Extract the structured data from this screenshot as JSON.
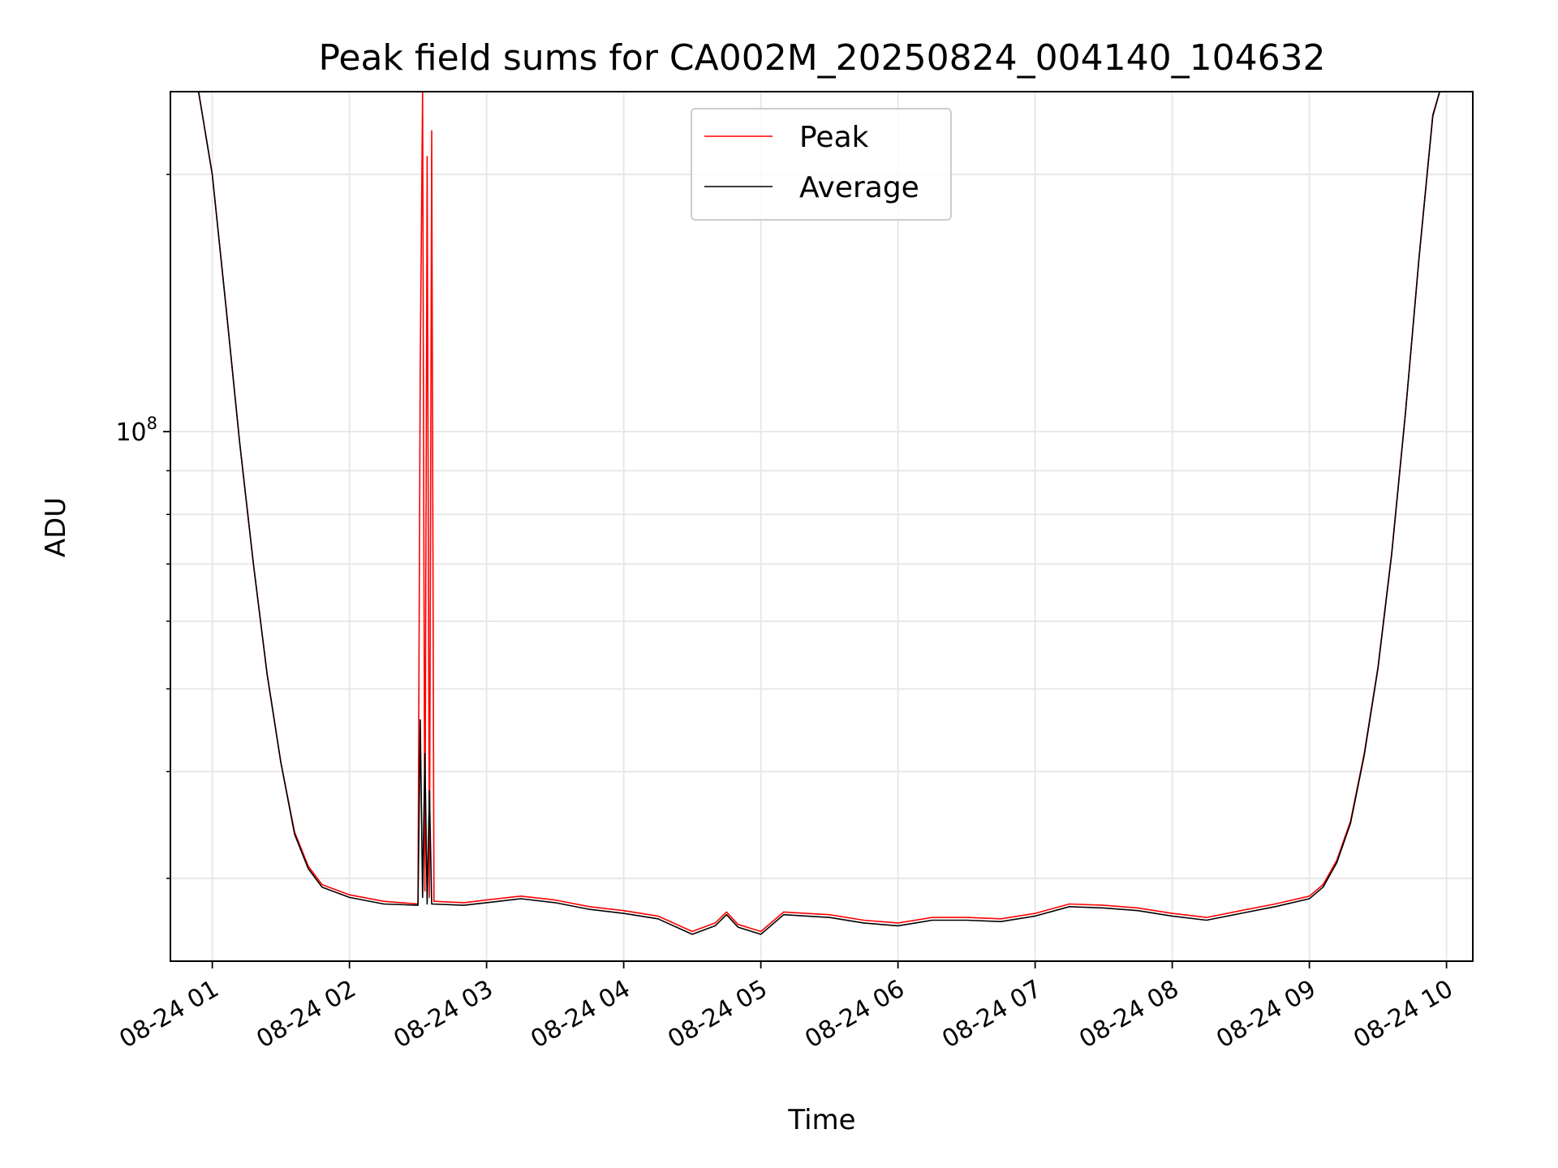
{
  "chart_data": {
    "type": "line",
    "title": "Peak field sums for CA002M_20250824_004140_104632",
    "xlabel": "Time",
    "ylabel": "ADU",
    "y_scale": "log",
    "ylim": [
      24000000,
      250000000
    ],
    "xlim": [
      "2025-08-24 00:41:40",
      "2025-08-24 10:11:30"
    ],
    "grid": true,
    "legend_position": "top-center",
    "x_ticks": [
      {
        "t": "2025-08-24 01:00",
        "label": "08-24 01"
      },
      {
        "t": "2025-08-24 02:00",
        "label": "08-24 02"
      },
      {
        "t": "2025-08-24 03:00",
        "label": "08-24 03"
      },
      {
        "t": "2025-08-24 04:00",
        "label": "08-24 04"
      },
      {
        "t": "2025-08-24 05:00",
        "label": "08-24 05"
      },
      {
        "t": "2025-08-24 06:00",
        "label": "08-24 06"
      },
      {
        "t": "2025-08-24 07:00",
        "label": "08-24 07"
      },
      {
        "t": "2025-08-24 08:00",
        "label": "08-24 08"
      },
      {
        "t": "2025-08-24 09:00",
        "label": "08-24 09"
      },
      {
        "t": "2025-08-24 10:00",
        "label": "08-24 10"
      }
    ],
    "y_major_ticks": [
      {
        "value": 100000000,
        "label_base": "10",
        "label_exp": "8"
      }
    ],
    "y_minor_ticks": [
      30000000,
      40000000,
      50000000,
      60000000,
      70000000,
      80000000,
      90000000,
      200000000
    ],
    "series": [
      {
        "name": "Peak",
        "color": "#ff0000",
        "points": [
          [
            "2025-08-24 00:41:40",
            250000000
          ],
          [
            "2025-08-24 00:54:00",
            250000000
          ],
          [
            "2025-08-24 01:00:00",
            200000000
          ],
          [
            "2025-08-24 01:06:00",
            140000000
          ],
          [
            "2025-08-24 01:12:00",
            97000000
          ],
          [
            "2025-08-24 01:18:00",
            70000000
          ],
          [
            "2025-08-24 01:24:00",
            52000000
          ],
          [
            "2025-08-24 01:30:00",
            41000000
          ],
          [
            "2025-08-24 01:36:00",
            34000000
          ],
          [
            "2025-08-24 01:42:00",
            31000000
          ],
          [
            "2025-08-24 01:48:00",
            29500000
          ],
          [
            "2025-08-24 02:00:00",
            28700000
          ],
          [
            "2025-08-24 02:15:00",
            28200000
          ],
          [
            "2025-08-24 02:30:00",
            28000000
          ],
          [
            "2025-08-24 02:31:00",
            120000000
          ],
          [
            "2025-08-24 02:32:00",
            250000000
          ],
          [
            "2025-08-24 02:33:00",
            29000000
          ],
          [
            "2025-08-24 02:34:00",
            210000000
          ],
          [
            "2025-08-24 02:35:00",
            28500000
          ],
          [
            "2025-08-24 02:36:00",
            225000000
          ],
          [
            "2025-08-24 02:37:00",
            28200000
          ],
          [
            "2025-08-24 02:50:00",
            28100000
          ],
          [
            "2025-08-24 03:00:00",
            28300000
          ],
          [
            "2025-08-24 03:15:00",
            28600000
          ],
          [
            "2025-08-24 03:30:00",
            28300000
          ],
          [
            "2025-08-24 03:45:00",
            27800000
          ],
          [
            "2025-08-24 04:00:00",
            27500000
          ],
          [
            "2025-08-24 04:15:00",
            27100000
          ],
          [
            "2025-08-24 04:30:00",
            26000000
          ],
          [
            "2025-08-24 04:40:00",
            26600000
          ],
          [
            "2025-08-24 04:45:00",
            27400000
          ],
          [
            "2025-08-24 04:50:00",
            26500000
          ],
          [
            "2025-08-24 05:00:00",
            26000000
          ],
          [
            "2025-08-24 05:10:00",
            27400000
          ],
          [
            "2025-08-24 05:30:00",
            27200000
          ],
          [
            "2025-08-24 05:45:00",
            26800000
          ],
          [
            "2025-08-24 06:00:00",
            26600000
          ],
          [
            "2025-08-24 06:15:00",
            27000000
          ],
          [
            "2025-08-24 06:30:00",
            27000000
          ],
          [
            "2025-08-24 06:45:00",
            26900000
          ],
          [
            "2025-08-24 07:00:00",
            27300000
          ],
          [
            "2025-08-24 07:15:00",
            28000000
          ],
          [
            "2025-08-24 07:30:00",
            27900000
          ],
          [
            "2025-08-24 07:45:00",
            27700000
          ],
          [
            "2025-08-24 08:00:00",
            27300000
          ],
          [
            "2025-08-24 08:15:00",
            27000000
          ],
          [
            "2025-08-24 08:30:00",
            27500000
          ],
          [
            "2025-08-24 08:45:00",
            28000000
          ],
          [
            "2025-08-24 09:00:00",
            28600000
          ],
          [
            "2025-08-24 09:06:00",
            29500000
          ],
          [
            "2025-08-24 09:12:00",
            31500000
          ],
          [
            "2025-08-24 09:18:00",
            35000000
          ],
          [
            "2025-08-24 09:24:00",
            42000000
          ],
          [
            "2025-08-24 09:30:00",
            53000000
          ],
          [
            "2025-08-24 09:36:00",
            72000000
          ],
          [
            "2025-08-24 09:42:00",
            105000000
          ],
          [
            "2025-08-24 09:48:00",
            160000000
          ],
          [
            "2025-08-24 09:54:00",
            235000000
          ],
          [
            "2025-08-24 09:57:00",
            250000000
          ],
          [
            "2025-08-24 10:11:30",
            250000000
          ]
        ]
      },
      {
        "name": "Average",
        "color": "#000000",
        "points": [
          [
            "2025-08-24 00:41:40",
            250000000
          ],
          [
            "2025-08-24 00:54:00",
            250000000
          ],
          [
            "2025-08-24 01:00:00",
            200000000
          ],
          [
            "2025-08-24 01:06:00",
            140000000
          ],
          [
            "2025-08-24 01:12:00",
            97000000
          ],
          [
            "2025-08-24 01:18:00",
            70000000
          ],
          [
            "2025-08-24 01:24:00",
            52000000
          ],
          [
            "2025-08-24 01:30:00",
            41000000
          ],
          [
            "2025-08-24 01:36:00",
            33800000
          ],
          [
            "2025-08-24 01:42:00",
            30800000
          ],
          [
            "2025-08-24 01:48:00",
            29300000
          ],
          [
            "2025-08-24 02:00:00",
            28500000
          ],
          [
            "2025-08-24 02:15:00",
            28000000
          ],
          [
            "2025-08-24 02:30:00",
            27900000
          ],
          [
            "2025-08-24 02:31:00",
            46000000
          ],
          [
            "2025-08-24 02:32:00",
            28500000
          ],
          [
            "2025-08-24 02:33:00",
            42000000
          ],
          [
            "2025-08-24 02:34:00",
            28000000
          ],
          [
            "2025-08-24 02:35:00",
            38000000
          ],
          [
            "2025-08-24 02:36:00",
            28000000
          ],
          [
            "2025-08-24 02:50:00",
            27900000
          ],
          [
            "2025-08-24 03:00:00",
            28100000
          ],
          [
            "2025-08-24 03:15:00",
            28400000
          ],
          [
            "2025-08-24 03:30:00",
            28100000
          ],
          [
            "2025-08-24 03:45:00",
            27600000
          ],
          [
            "2025-08-24 04:00:00",
            27300000
          ],
          [
            "2025-08-24 04:15:00",
            26900000
          ],
          [
            "2025-08-24 04:30:00",
            25800000
          ],
          [
            "2025-08-24 04:40:00",
            26400000
          ],
          [
            "2025-08-24 04:45:00",
            27200000
          ],
          [
            "2025-08-24 04:50:00",
            26300000
          ],
          [
            "2025-08-24 05:00:00",
            25800000
          ],
          [
            "2025-08-24 05:10:00",
            27200000
          ],
          [
            "2025-08-24 05:30:00",
            27000000
          ],
          [
            "2025-08-24 05:45:00",
            26600000
          ],
          [
            "2025-08-24 06:00:00",
            26400000
          ],
          [
            "2025-08-24 06:15:00",
            26800000
          ],
          [
            "2025-08-24 06:30:00",
            26800000
          ],
          [
            "2025-08-24 06:45:00",
            26700000
          ],
          [
            "2025-08-24 07:00:00",
            27100000
          ],
          [
            "2025-08-24 07:15:00",
            27800000
          ],
          [
            "2025-08-24 07:30:00",
            27700000
          ],
          [
            "2025-08-24 07:45:00",
            27500000
          ],
          [
            "2025-08-24 08:00:00",
            27100000
          ],
          [
            "2025-08-24 08:15:00",
            26800000
          ],
          [
            "2025-08-24 08:30:00",
            27300000
          ],
          [
            "2025-08-24 08:45:00",
            27800000
          ],
          [
            "2025-08-24 09:00:00",
            28400000
          ],
          [
            "2025-08-24 09:06:00",
            29300000
          ],
          [
            "2025-08-24 09:12:00",
            31300000
          ],
          [
            "2025-08-24 09:18:00",
            34800000
          ],
          [
            "2025-08-24 09:24:00",
            41800000
          ],
          [
            "2025-08-24 09:30:00",
            52800000
          ],
          [
            "2025-08-24 09:36:00",
            71800000
          ],
          [
            "2025-08-24 09:42:00",
            104800000
          ],
          [
            "2025-08-24 09:48:00",
            159800000
          ],
          [
            "2025-08-24 09:54:00",
            234000000
          ],
          [
            "2025-08-24 09:57:00",
            250000000
          ],
          [
            "2025-08-24 10:11:30",
            250000000
          ]
        ]
      }
    ]
  }
}
